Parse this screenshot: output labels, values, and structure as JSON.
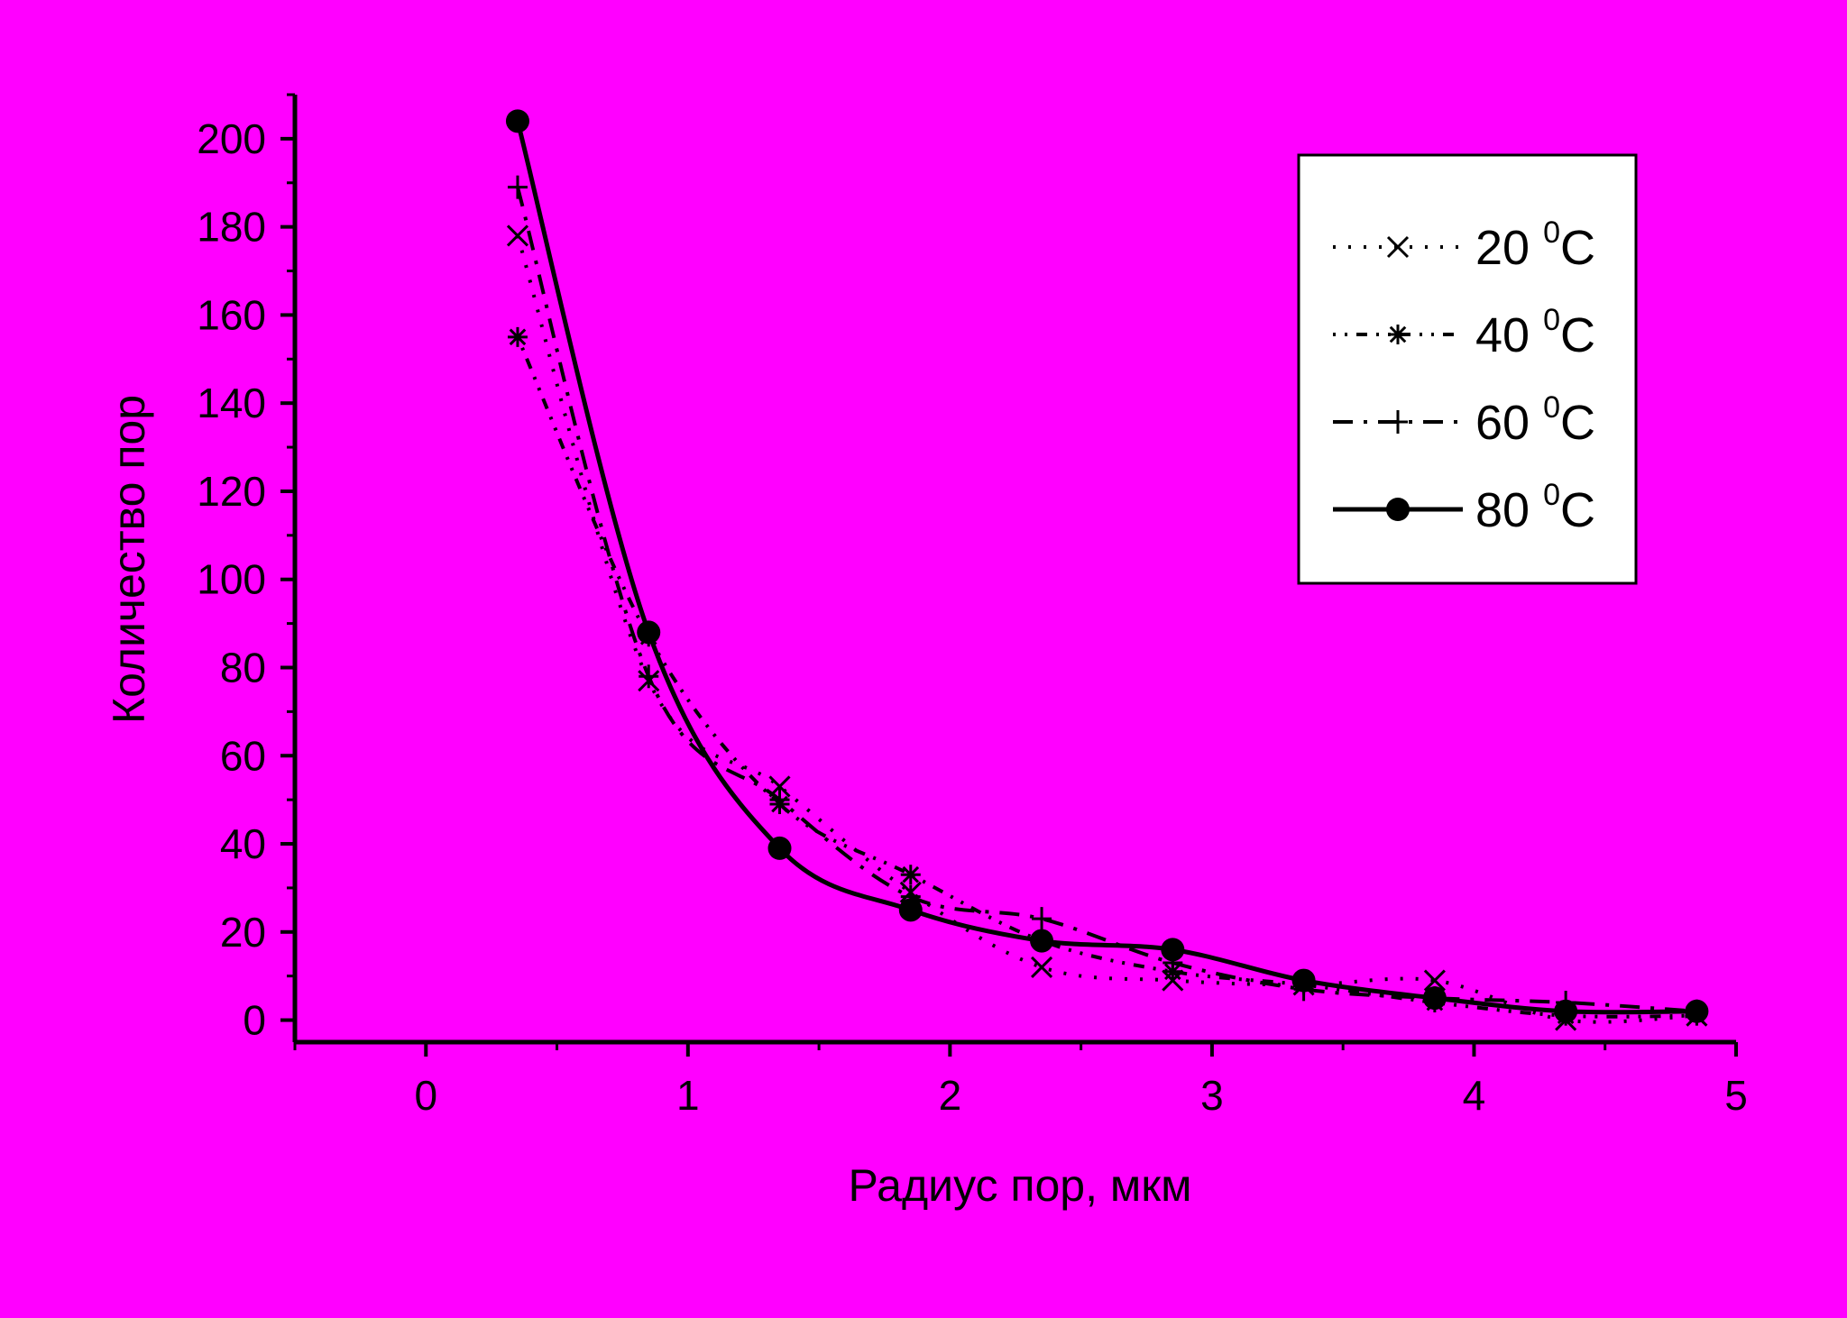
{
  "colors": {
    "background": "#ff00ff",
    "foreground": "#000000",
    "legend_background": "#ffffff"
  },
  "chart_data": {
    "type": "line",
    "title": "",
    "xlabel": "Радиус пор, мкм",
    "ylabel": "Количество пор",
    "xlim": [
      -0.5,
      5
    ],
    "ylim": [
      -5,
      210
    ],
    "x_ticks": [
      "0",
      "1",
      "2",
      "3",
      "4",
      "5"
    ],
    "y_ticks": [
      "0",
      "20",
      "40",
      "60",
      "80",
      "100",
      "120",
      "140",
      "160",
      "180",
      "200"
    ],
    "grid": false,
    "legend_position": "top-right",
    "x": [
      0.35,
      0.85,
      1.35,
      1.85,
      2.35,
      2.85,
      3.35,
      3.85,
      4.35,
      4.85
    ],
    "series": [
      {
        "name": "20",
        "unit": "C",
        "sup": "0",
        "marker": "x",
        "line_style": "dotted",
        "values": [
          178,
          77,
          53,
          29,
          12,
          9,
          8,
          9,
          0,
          1
        ]
      },
      {
        "name": "40",
        "unit": "C",
        "sup": "0",
        "marker": "asterisk",
        "line_style": "dash-dot-dot",
        "values": [
          155,
          87,
          49,
          33,
          18,
          11,
          8,
          4,
          1,
          1
        ]
      },
      {
        "name": "60",
        "unit": "C",
        "sup": "0",
        "marker": "plus",
        "line_style": "dash-dot",
        "values": [
          189,
          78,
          50,
          28,
          23,
          13,
          7,
          5,
          4,
          2
        ]
      },
      {
        "name": "80",
        "unit": "C",
        "sup": "0",
        "marker": "circle",
        "line_style": "solid",
        "values": [
          204,
          88,
          39,
          25,
          18,
          16,
          9,
          5,
          2,
          2
        ]
      }
    ]
  }
}
